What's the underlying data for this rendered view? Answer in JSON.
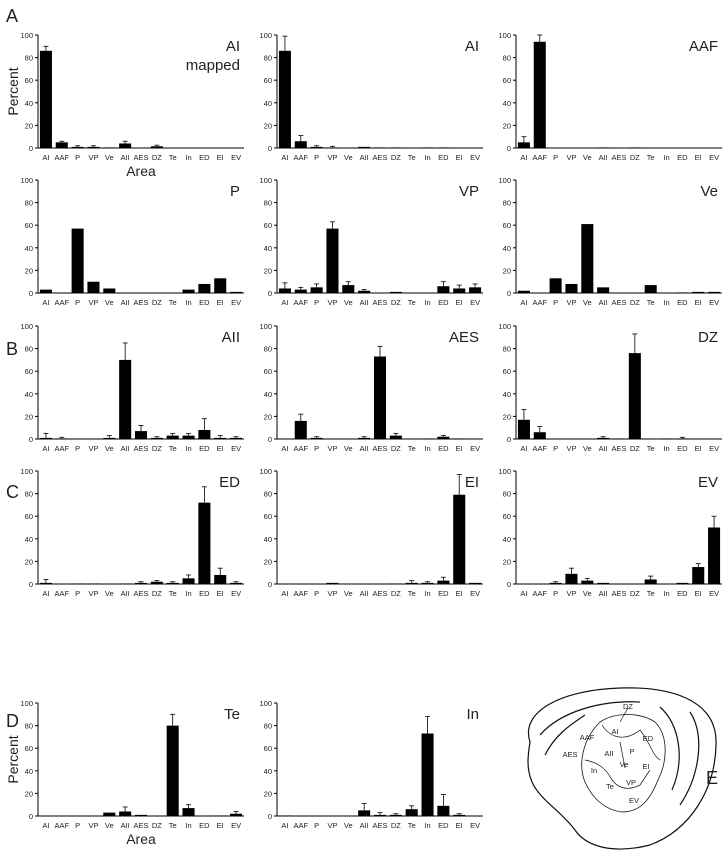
{
  "panel_labels": [
    "A",
    "B",
    "C",
    "D",
    "E"
  ],
  "chart_data": [
    {
      "type": "bar",
      "title": "AI",
      "subtitle": "mapped",
      "ylabel": "Percent",
      "xlabel": "Area",
      "color": "#000000",
      "ylim": [
        0,
        100
      ],
      "yticks": [
        0,
        20,
        40,
        60,
        80,
        100
      ],
      "categories": [
        "AI",
        "AAF",
        "P",
        "VP",
        "Ve",
        "AII",
        "AES",
        "DZ",
        "Te",
        "In",
        "ED",
        "EI",
        "EV"
      ],
      "values": [
        86,
        5,
        1,
        1,
        0.5,
        4,
        0,
        1.5,
        0,
        0,
        0,
        0,
        0
      ],
      "errors": [
        4,
        1,
        1,
        1,
        null,
        2,
        null,
        1,
        null,
        null,
        null,
        null,
        null
      ]
    },
    {
      "type": "bar",
      "title": "AI",
      "color": "#000000",
      "ylim": [
        0,
        100
      ],
      "yticks": [
        0,
        20,
        40,
        60,
        80,
        100
      ],
      "categories": [
        "AI",
        "AAF",
        "P",
        "VP",
        "Ve",
        "AII",
        "AES",
        "DZ",
        "Te",
        "In",
        "ED",
        "EI",
        "EV"
      ],
      "values": [
        86,
        6,
        1,
        0.5,
        0,
        1,
        0.5,
        0.5,
        0,
        0.5,
        0.5,
        0,
        0
      ],
      "errors": [
        13,
        5,
        1,
        1,
        null,
        null,
        null,
        null,
        null,
        null,
        null,
        null,
        null
      ]
    },
    {
      "type": "bar",
      "title": "AAF",
      "color": "#000000",
      "ylim": [
        0,
        100
      ],
      "yticks": [
        0,
        20,
        40,
        60,
        80,
        100
      ],
      "categories": [
        "AI",
        "AAF",
        "P",
        "VP",
        "Ve",
        "AII",
        "AES",
        "DZ",
        "Te",
        "In",
        "ED",
        "EI",
        "EV"
      ],
      "values": [
        5,
        94,
        0,
        0,
        0,
        0.5,
        0,
        0.5,
        0,
        0,
        0,
        0,
        0
      ],
      "errors": [
        5,
        6,
        null,
        null,
        null,
        null,
        null,
        null,
        null,
        null,
        null,
        null,
        null
      ]
    },
    {
      "type": "bar",
      "title": "P",
      "color": "#000000",
      "ylim": [
        0,
        100
      ],
      "yticks": [
        0,
        20,
        40,
        60,
        80,
        100
      ],
      "categories": [
        "AI",
        "AAF",
        "P",
        "VP",
        "Ve",
        "AII",
        "AES",
        "DZ",
        "Te",
        "In",
        "ED",
        "EI",
        "EV"
      ],
      "values": [
        3,
        0,
        57,
        10,
        4,
        0,
        0,
        0,
        0,
        3,
        8,
        13,
        1
      ]
    },
    {
      "type": "bar",
      "title": "VP",
      "color": "#000000",
      "ylim": [
        0,
        100
      ],
      "yticks": [
        0,
        20,
        40,
        60,
        80,
        100
      ],
      "categories": [
        "AI",
        "AAF",
        "P",
        "VP",
        "Ve",
        "AII",
        "AES",
        "DZ",
        "Te",
        "In",
        "ED",
        "EI",
        "EV"
      ],
      "values": [
        4,
        3,
        5,
        57,
        7,
        2,
        0,
        1,
        0,
        0,
        6,
        4,
        5
      ],
      "errors": [
        5,
        2,
        3,
        6,
        3,
        1,
        null,
        null,
        null,
        null,
        4,
        3,
        3
      ]
    },
    {
      "type": "bar",
      "title": "Ve",
      "color": "#000000",
      "ylim": [
        0,
        100
      ],
      "yticks": [
        0,
        20,
        40,
        60,
        80,
        100
      ],
      "categories": [
        "AI",
        "AAF",
        "P",
        "VP",
        "Ve",
        "AII",
        "AES",
        "DZ",
        "Te",
        "In",
        "ED",
        "EI",
        "EV"
      ],
      "values": [
        2,
        0,
        13,
        8,
        61,
        5,
        0,
        0,
        7,
        0,
        0.5,
        1,
        1
      ]
    },
    {
      "type": "bar",
      "title": "AII",
      "color": "#000000",
      "ylim": [
        0,
        100
      ],
      "yticks": [
        0,
        20,
        40,
        60,
        80,
        100
      ],
      "categories": [
        "AI",
        "AAF",
        "P",
        "VP",
        "Ve",
        "AII",
        "AES",
        "DZ",
        "Te",
        "In",
        "ED",
        "EI",
        "EV"
      ],
      "values": [
        1,
        0.5,
        0,
        0,
        1,
        70,
        7,
        1,
        3,
        3,
        8,
        1,
        1
      ],
      "errors": [
        4,
        1,
        null,
        null,
        2,
        15,
        5,
        1,
        2,
        2,
        10,
        2,
        1
      ]
    },
    {
      "type": "bar",
      "title": "AES",
      "color": "#000000",
      "ylim": [
        0,
        100
      ],
      "yticks": [
        0,
        20,
        40,
        60,
        80,
        100
      ],
      "categories": [
        "AI",
        "AAF",
        "P",
        "VP",
        "Ve",
        "AII",
        "AES",
        "DZ",
        "Te",
        "In",
        "ED",
        "EI",
        "EV"
      ],
      "values": [
        0,
        16,
        1,
        0,
        0,
        1,
        73,
        3,
        0,
        0.5,
        2,
        0.5,
        0
      ],
      "errors": [
        null,
        6,
        1,
        null,
        null,
        1,
        9,
        2,
        null,
        null,
        1,
        null,
        null
      ]
    },
    {
      "type": "bar",
      "title": "DZ",
      "color": "#000000",
      "ylim": [
        0,
        100
      ],
      "yticks": [
        0,
        20,
        40,
        60,
        80,
        100
      ],
      "categories": [
        "AI",
        "AAF",
        "P",
        "VP",
        "Ve",
        "AII",
        "AES",
        "DZ",
        "Te",
        "In",
        "ED",
        "EI",
        "EV"
      ],
      "values": [
        17,
        6,
        0,
        0,
        0,
        1,
        0.5,
        76,
        0,
        0.5,
        0.5,
        0,
        0
      ],
      "errors": [
        9,
        5,
        null,
        null,
        null,
        1,
        null,
        17,
        null,
        null,
        1,
        null,
        null
      ]
    },
    {
      "type": "bar",
      "title": "ED",
      "color": "#000000",
      "ylim": [
        0,
        100
      ],
      "yticks": [
        0,
        20,
        40,
        60,
        80,
        100
      ],
      "categories": [
        "AI",
        "AAF",
        "P",
        "VP",
        "Ve",
        "AII",
        "AES",
        "DZ",
        "Te",
        "In",
        "ED",
        "EI",
        "EV"
      ],
      "values": [
        1,
        0,
        0.5,
        0.5,
        0,
        0.5,
        1,
        2,
        1,
        5,
        72,
        8,
        1
      ],
      "errors": [
        3,
        null,
        null,
        null,
        null,
        null,
        1,
        1,
        1,
        3,
        14,
        6,
        1
      ]
    },
    {
      "type": "bar",
      "title": "EI",
      "color": "#000000",
      "ylim": [
        0,
        100
      ],
      "yticks": [
        0,
        20,
        40,
        60,
        80,
        100
      ],
      "categories": [
        "AI",
        "AAF",
        "P",
        "VP",
        "Ve",
        "AII",
        "AES",
        "DZ",
        "Te",
        "In",
        "ED",
        "EI",
        "EV"
      ],
      "values": [
        0,
        0,
        0,
        1,
        0,
        0,
        0,
        0.5,
        1,
        1,
        3,
        79,
        1
      ],
      "errors": [
        null,
        null,
        null,
        null,
        null,
        null,
        null,
        null,
        2,
        1,
        3,
        18,
        null
      ]
    },
    {
      "type": "bar",
      "title": "EV",
      "color": "#000000",
      "ylim": [
        0,
        100
      ],
      "yticks": [
        0,
        20,
        40,
        60,
        80,
        100
      ],
      "categories": [
        "AI",
        "AAF",
        "P",
        "VP",
        "Ve",
        "AII",
        "AES",
        "DZ",
        "Te",
        "In",
        "ED",
        "EI",
        "EV"
      ],
      "values": [
        0,
        0,
        1,
        9,
        3,
        1,
        0,
        0,
        4,
        0,
        1,
        15,
        50
      ],
      "errors": [
        null,
        null,
        1,
        5,
        2,
        null,
        null,
        null,
        3,
        null,
        null,
        3,
        10
      ]
    },
    {
      "type": "bar",
      "title": "Te",
      "ylabel": "Percent",
      "xlabel": "Area",
      "color": "#000000",
      "ylim": [
        0,
        100
      ],
      "yticks": [
        0,
        20,
        40,
        60,
        80,
        100
      ],
      "categories": [
        "AI",
        "AAF",
        "P",
        "VP",
        "Ve",
        "AII",
        "AES",
        "DZ",
        "Te",
        "In",
        "ED",
        "EI",
        "EV"
      ],
      "values": [
        0,
        0,
        0,
        0,
        3,
        4,
        1,
        0,
        80,
        7,
        0,
        0.5,
        2
      ],
      "errors": [
        null,
        null,
        null,
        null,
        null,
        4,
        null,
        null,
        10,
        3,
        null,
        null,
        2
      ]
    },
    {
      "type": "bar",
      "title": "In",
      "color": "#000000",
      "ylim": [
        0,
        100
      ],
      "yticks": [
        0,
        20,
        40,
        60,
        80,
        100
      ],
      "categories": [
        "AI",
        "AAF",
        "P",
        "VP",
        "Ve",
        "AII",
        "AES",
        "DZ",
        "Te",
        "In",
        "ED",
        "EI",
        "EV"
      ],
      "values": [
        0.5,
        0,
        0,
        0,
        0,
        5,
        1,
        1,
        6,
        73,
        9,
        1,
        0
      ],
      "errors": [
        null,
        null,
        null,
        null,
        null,
        6,
        2,
        1,
        3,
        15,
        10,
        1,
        null
      ]
    }
  ],
  "diagram": {
    "labels": [
      "DZ",
      "AI",
      "AAF",
      "ED",
      "AES",
      "AII",
      "P",
      "Ve",
      "EI",
      "In",
      "VP",
      "Te",
      "EV"
    ]
  }
}
